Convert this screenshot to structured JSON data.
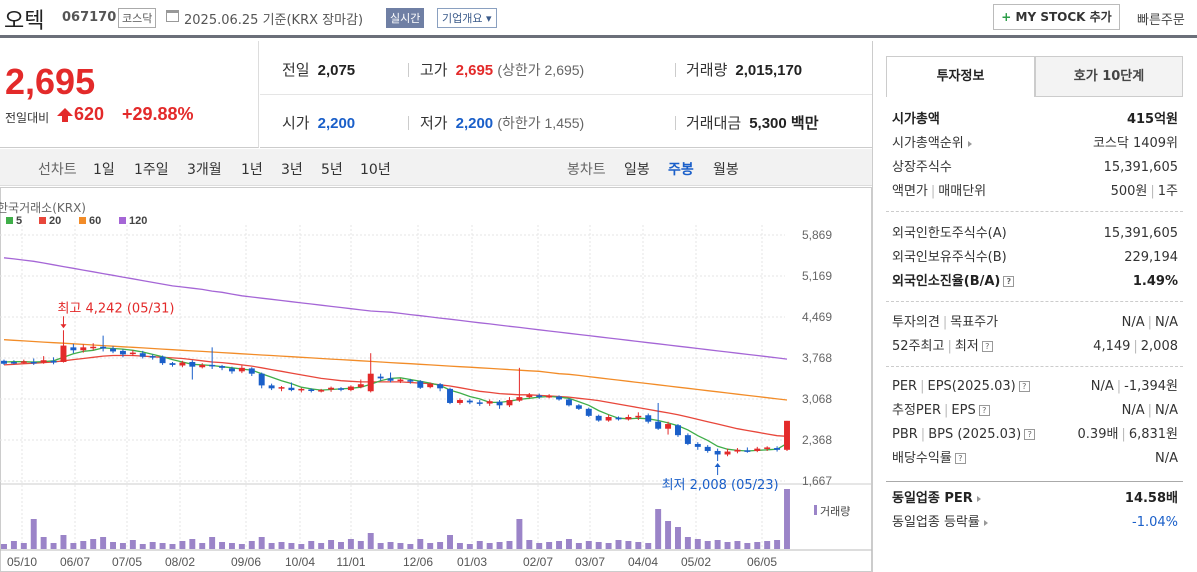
{
  "header": {
    "name": "오텍",
    "code": "067170",
    "market": "코스닥",
    "date": "2025.06.25 기준(KRX 장마감)",
    "realtime": "실시간",
    "corp_info": "기업개요 ▾",
    "mystock": "MY STOCK 추가",
    "mystock_plus": "+",
    "quick_order": "빠른주문"
  },
  "price": {
    "current": "2,695",
    "compare_label": "전일대비",
    "change": "620",
    "rate": "+29.88%"
  },
  "stats": {
    "prev_label": "전일",
    "prev": "2,075",
    "high_label": "고가",
    "high": "2,695",
    "upper_limit": "(상한가 2,695)",
    "volume_label": "거래량",
    "volume": "2,015,170",
    "open_label": "시가",
    "open": "2,200",
    "low_label": "저가",
    "low": "2,200",
    "lower_limit": "(하한가 1,455)",
    "amount_label": "거래대금",
    "amount": "5,300 백만"
  },
  "toolbar": {
    "line_label": "선차트",
    "line_periods": [
      "1일",
      "1주일",
      "3개월",
      "1년",
      "3년",
      "5년",
      "10년"
    ],
    "candle_label": "봉차트",
    "candle_periods": [
      "일봉",
      "주봉",
      "월봉"
    ],
    "active_candle": "주봉"
  },
  "chart_data": {
    "type": "candlestick",
    "source": "한국거래소(KRX)",
    "legend": [
      {
        "name": "5",
        "color": "#3fae49"
      },
      {
        "name": "20",
        "color": "#e8473b"
      },
      {
        "name": "60",
        "color": "#f28c28"
      },
      {
        "name": "120",
        "color": "#a566d6"
      }
    ],
    "y_ticks": [
      5869,
      5169,
      4469,
      3768,
      3068,
      2368,
      1667
    ],
    "y_tick_labels": [
      "5,869",
      "5,169",
      "4,469",
      "3,768",
      "3,068",
      "2,368",
      "1,667"
    ],
    "ylim": [
      1667,
      5869
    ],
    "x_tick_labels": [
      "05/10",
      "06/07",
      "07/05",
      "08/02",
      "09/06",
      "10/04",
      "11/01",
      "12/06",
      "01/03",
      "02/07",
      "03/07",
      "04/04",
      "05/02",
      "06/05"
    ],
    "annotation_high": "최고 4,242 (05/31)",
    "annotation_low": "최저 2,008 (05/23)",
    "volume_label": "거래량",
    "candles": [
      [
        3720,
        3670,
        3740,
        3650
      ],
      [
        3700,
        3690,
        3730,
        3660
      ],
      [
        3690,
        3710,
        3740,
        3670
      ],
      [
        3700,
        3680,
        3760,
        3650
      ],
      [
        3690,
        3730,
        3800,
        3670
      ],
      [
        3720,
        3690,
        3780,
        3660
      ],
      [
        3700,
        3980,
        4242,
        3690
      ],
      [
        3950,
        3900,
        4010,
        3850
      ],
      [
        3900,
        3950,
        4000,
        3860
      ],
      [
        3940,
        3960,
        4020,
        3900
      ],
      [
        3960,
        3930,
        4150,
        3880
      ],
      [
        3930,
        3880,
        3970,
        3850
      ],
      [
        3890,
        3830,
        3920,
        3780
      ],
      [
        3840,
        3860,
        3900,
        3800
      ],
      [
        3850,
        3790,
        3890,
        3760
      ],
      [
        3800,
        3780,
        3830,
        3740
      ],
      [
        3790,
        3680,
        3810,
        3650
      ],
      [
        3680,
        3650,
        3700,
        3620
      ],
      [
        3640,
        3690,
        3720,
        3610
      ],
      [
        3700,
        3620,
        3730,
        3400
      ],
      [
        3610,
        3650,
        3680,
        3590
      ],
      [
        3650,
        3630,
        3950,
        3580
      ],
      [
        3630,
        3600,
        3650,
        3560
      ],
      [
        3590,
        3540,
        3620,
        3500
      ],
      [
        3540,
        3600,
        3640,
        3510
      ],
      [
        3590,
        3500,
        3610,
        3460
      ],
      [
        3500,
        3300,
        3520,
        3250
      ],
      [
        3300,
        3250,
        3330,
        3220
      ],
      [
        3250,
        3270,
        3290,
        3200
      ],
      [
        3260,
        3220,
        3350,
        3200
      ],
      [
        3220,
        3240,
        3260,
        3180
      ],
      [
        3230,
        3210,
        3250,
        3180
      ],
      [
        3200,
        3220,
        3240,
        3180
      ],
      [
        3230,
        3260,
        3280,
        3190
      ],
      [
        3250,
        3230,
        3270,
        3200
      ],
      [
        3220,
        3280,
        3300,
        3200
      ],
      [
        3270,
        3320,
        3400,
        3250
      ],
      [
        3200,
        3500,
        3850,
        3180
      ],
      [
        3450,
        3420,
        3500,
        3380
      ],
      [
        3420,
        3380,
        3520,
        3350
      ],
      [
        3380,
        3400,
        3420,
        3340
      ],
      [
        3390,
        3370,
        3410,
        3330
      ],
      [
        3370,
        3260,
        3390,
        3240
      ],
      [
        3270,
        3330,
        3350,
        3250
      ],
      [
        3320,
        3250,
        3340,
        3200
      ],
      [
        3240,
        3000,
        3260,
        2980
      ],
      [
        3000,
        3050,
        3080,
        2970
      ],
      [
        3040,
        3010,
        3070,
        2980
      ],
      [
        3010,
        2990,
        3050,
        2950
      ],
      [
        2990,
        3030,
        3060,
        2950
      ],
      [
        3020,
        2960,
        3050,
        2900
      ],
      [
        2960,
        3050,
        3100,
        2930
      ],
      [
        3040,
        3100,
        3600,
        3020
      ],
      [
        3100,
        3130,
        3170,
        3080
      ],
      [
        3130,
        3100,
        3160,
        3070
      ],
      [
        3100,
        3120,
        3150,
        3080
      ],
      [
        3110,
        3060,
        3130,
        3040
      ],
      [
        3060,
        2960,
        3080,
        2940
      ],
      [
        2960,
        2900,
        2980,
        2880
      ],
      [
        2900,
        2780,
        2920,
        2760
      ],
      [
        2780,
        2700,
        2800,
        2680
      ],
      [
        2700,
        2760,
        2800,
        2680
      ],
      [
        2750,
        2720,
        2770,
        2700
      ],
      [
        2720,
        2760,
        2800,
        2700
      ],
      [
        2760,
        2780,
        2840,
        2710
      ],
      [
        2790,
        2680,
        2820,
        2650
      ],
      [
        2680,
        2560,
        3000,
        2540
      ],
      [
        2560,
        2640,
        2680,
        2460
      ],
      [
        2620,
        2450,
        2640,
        2420
      ],
      [
        2450,
        2300,
        2480,
        2280
      ],
      [
        2300,
        2250,
        2330,
        2200
      ],
      [
        2250,
        2180,
        2280,
        2150
      ],
      [
        2180,
        2120,
        2220,
        2008
      ],
      [
        2120,
        2170,
        2220,
        2090
      ],
      [
        2170,
        2200,
        2230,
        2140
      ],
      [
        2190,
        2180,
        2240,
        2150
      ],
      [
        2180,
        2220,
        2250,
        2160
      ],
      [
        2220,
        2240,
        2260,
        2180
      ],
      [
        2230,
        2200,
        2260,
        2170
      ],
      [
        2200,
        2695,
        2695,
        2180
      ]
    ],
    "ma5": [
      3700,
      3705,
      3705,
      3700,
      3705,
      3720,
      3780,
      3840,
      3880,
      3900,
      3940,
      3930,
      3920,
      3900,
      3870,
      3830,
      3790,
      3740,
      3700,
      3660,
      3650,
      3640,
      3620,
      3600,
      3580,
      3560,
      3500,
      3440,
      3380,
      3330,
      3270,
      3240,
      3220,
      3230,
      3240,
      3250,
      3270,
      3320,
      3380,
      3420,
      3430,
      3400,
      3370,
      3340,
      3300,
      3220,
      3170,
      3110,
      3070,
      3010,
      3010,
      3030,
      3060,
      3080,
      3100,
      3110,
      3100,
      3080,
      3020,
      2960,
      2870,
      2800,
      2740,
      2730,
      2740,
      2730,
      2700,
      2660,
      2610,
      2540,
      2440,
      2360,
      2260,
      2210,
      2190,
      2180,
      2190,
      2200,
      2210,
      2310
    ],
    "ma20": [
      3650,
      3660,
      3670,
      3680,
      3690,
      3700,
      3720,
      3740,
      3760,
      3780,
      3800,
      3810,
      3810,
      3810,
      3800,
      3790,
      3780,
      3770,
      3760,
      3740,
      3720,
      3700,
      3690,
      3670,
      3650,
      3630,
      3600,
      3570,
      3540,
      3510,
      3480,
      3450,
      3420,
      3400,
      3380,
      3370,
      3360,
      3360,
      3360,
      3360,
      3360,
      3350,
      3340,
      3330,
      3310,
      3290,
      3260,
      3230,
      3200,
      3180,
      3160,
      3150,
      3140,
      3140,
      3130,
      3120,
      3110,
      3100,
      3080,
      3060,
      3040,
      3010,
      2980,
      2950,
      2920,
      2890,
      2860,
      2830,
      2800,
      2760,
      2720,
      2680,
      2640,
      2600,
      2560,
      2530,
      2500,
      2470,
      2440,
      2430
    ],
    "ma60": [
      4080,
      4070,
      4060,
      4050,
      4040,
      4030,
      4020,
      4010,
      4000,
      3990,
      3980,
      3970,
      3960,
      3950,
      3940,
      3930,
      3920,
      3910,
      3900,
      3890,
      3880,
      3870,
      3860,
      3850,
      3840,
      3830,
      3820,
      3810,
      3800,
      3790,
      3780,
      3770,
      3760,
      3750,
      3740,
      3730,
      3720,
      3710,
      3700,
      3690,
      3680,
      3670,
      3660,
      3650,
      3640,
      3630,
      3620,
      3610,
      3600,
      3590,
      3580,
      3570,
      3560,
      3550,
      3540,
      3520,
      3500,
      3490,
      3470,
      3450,
      3430,
      3410,
      3390,
      3370,
      3350,
      3330,
      3310,
      3290,
      3270,
      3250,
      3230,
      3210,
      3190,
      3170,
      3150,
      3130,
      3110,
      3090,
      3070,
      3050
    ],
    "ma120": [
      5480,
      5460,
      5440,
      5420,
      5390,
      5360,
      5330,
      5300,
      5270,
      5240,
      5210,
      5180,
      5150,
      5120,
      5090,
      5060,
      5030,
      5000,
      4980,
      4960,
      4940,
      4910,
      4890,
      4860,
      4830,
      4810,
      4790,
      4770,
      4750,
      4730,
      4710,
      4690,
      4670,
      4650,
      4630,
      4610,
      4590,
      4570,
      4560,
      4550,
      4530,
      4510,
      4490,
      4470,
      4450,
      4430,
      4410,
      4390,
      4370,
      4350,
      4330,
      4310,
      4290,
      4270,
      4250,
      4230,
      4210,
      4190,
      4170,
      4150,
      4130,
      4110,
      4090,
      4070,
      4050,
      4030,
      4010,
      3990,
      3970,
      3950,
      3930,
      3910,
      3890,
      3870,
      3850,
      3830,
      3810,
      3790,
      3770,
      3750
    ],
    "volumes": [
      5,
      8,
      6,
      30,
      12,
      6,
      14,
      6,
      8,
      10,
      12,
      7,
      6,
      9,
      5,
      7,
      6,
      5,
      8,
      10,
      6,
      12,
      7,
      6,
      5,
      8,
      12,
      6,
      7,
      6,
      5,
      8,
      6,
      9,
      7,
      10,
      8,
      16,
      6,
      7,
      6,
      5,
      10,
      6,
      7,
      14,
      6,
      5,
      8,
      6,
      7,
      8,
      30,
      9,
      6,
      7,
      8,
      10,
      6,
      8,
      7,
      6,
      9,
      8,
      7,
      6,
      40,
      28,
      22,
      12,
      10,
      8,
      9,
      7,
      8,
      6,
      7,
      8,
      9,
      60
    ]
  },
  "info": {
    "tab1": "투자정보",
    "tab2": "호가 10단계",
    "market_cap_label": "시가총액",
    "market_cap": "415억원",
    "cap_rank_label": "시가총액순위",
    "cap_rank": "코스닥 1409위",
    "shares_label": "상장주식수",
    "shares": "15,391,605",
    "par_label": "액면가",
    "unit_label": "매매단위",
    "par": "500원",
    "unit": "1주",
    "foreign_limit_label": "외국인한도주식수(A)",
    "foreign_limit": "15,391,605",
    "foreign_hold_label": "외국인보유주식수(B)",
    "foreign_hold": "229,194",
    "foreign_rate_label": "외국인소진율(B/A)",
    "foreign_rate": "1.49%",
    "opinion_label": "투자의견",
    "target_label": "목표주가",
    "opinion": "N/A",
    "target": "N/A",
    "w52_high_label": "52주최고",
    "w52_low_label": "최저",
    "w52_high": "4,149",
    "w52_low": "2,008",
    "per_label": "PER",
    "eps_label": "EPS(2025.03)",
    "per": "N/A",
    "eps": "-1,394원",
    "est_per_label": "추정PER",
    "est_eps_label": "EPS",
    "est_per": "N/A",
    "est_eps": "N/A",
    "pbr_label": "PBR",
    "bps_label": "BPS (2025.03)",
    "pbr": "0.39배",
    "bps": "6,831원",
    "div_label": "배당수익률",
    "div": "N/A",
    "sector_per_label": "동일업종 PER",
    "sector_per": "14.58배",
    "sector_rate_label": "동일업종 등락률",
    "sector_rate": "-1.04%",
    "q": "?"
  }
}
